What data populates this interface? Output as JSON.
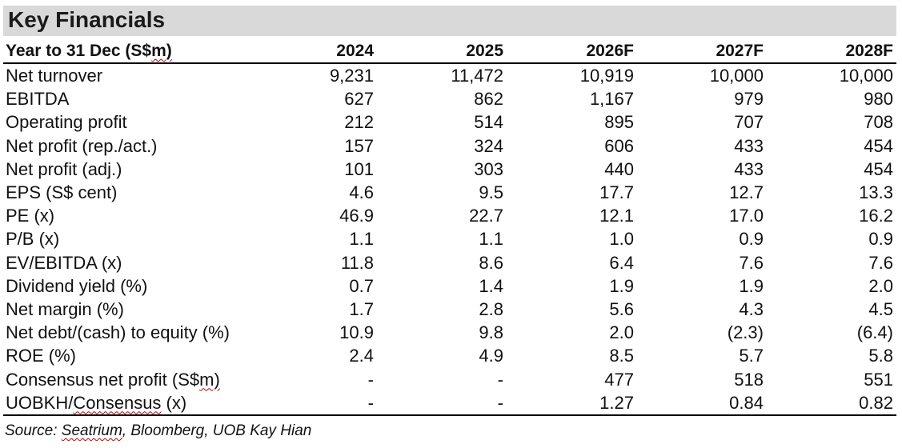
{
  "title": "Key Financials",
  "header": {
    "label_prefix": "Year to 31 Dec (S$",
    "label_wavy": "m)",
    "years": [
      "2024",
      "2025",
      "2026F",
      "2027F",
      "2028F"
    ]
  },
  "rows": [
    {
      "label": "Net turnover",
      "values": [
        "9,231",
        "11,472",
        "10,919",
        "10,000",
        "10,000"
      ]
    },
    {
      "label": "EBITDA",
      "values": [
        "627",
        "862",
        "1,167",
        "979",
        "980"
      ]
    },
    {
      "label": "Operating profit",
      "values": [
        "212",
        "514",
        "895",
        "707",
        "708"
      ]
    },
    {
      "label": "Net profit (rep./act.)",
      "values": [
        "157",
        "324",
        "606",
        "433",
        "454"
      ]
    },
    {
      "label": "Net profit (adj.)",
      "values": [
        "101",
        "303",
        "440",
        "433",
        "454"
      ]
    },
    {
      "label": "EPS (S$ cent)",
      "values": [
        "4.6",
        "9.5",
        "17.7",
        "12.7",
        "13.3"
      ]
    },
    {
      "label": "PE (x)",
      "values": [
        "46.9",
        "22.7",
        "12.1",
        "17.0",
        "16.2"
      ]
    },
    {
      "label": "P/B (x)",
      "values": [
        "1.1",
        "1.1",
        "1.0",
        "0.9",
        "0.9"
      ]
    },
    {
      "label": "EV/EBITDA (x)",
      "values": [
        "11.8",
        "8.6",
        "6.4",
        "7.6",
        "7.6"
      ]
    },
    {
      "label": "Dividend yield (%)",
      "values": [
        "0.7",
        "1.4",
        "1.9",
        "1.9",
        "2.0"
      ]
    },
    {
      "label": "Net margin (%)",
      "values": [
        "1.7",
        "2.8",
        "5.6",
        "4.3",
        "4.5"
      ]
    },
    {
      "label": "Net debt/(cash) to equity (%)",
      "values": [
        "10.9",
        "9.8",
        "2.0",
        "(2.3)",
        "(6.4)"
      ]
    },
    {
      "label": "ROE (%)",
      "values": [
        "2.4",
        "4.9",
        "8.5",
        "5.7",
        "5.8"
      ]
    },
    {
      "label": "Consensus net profit (S$m)",
      "label_prefix": "Consensus net profit (S$",
      "label_wavy": "m)",
      "values": [
        "-",
        "-",
        "477",
        "518",
        "551"
      ]
    },
    {
      "label": "UOBKH/Consensus (x)",
      "label_prefix": "UOBKH/",
      "label_wavy": "Consensus",
      "label_suffix": " (x)",
      "values": [
        "-",
        "-",
        "1.27",
        "0.84",
        "0.82"
      ]
    }
  ],
  "source": {
    "prefix": "Source: ",
    "wavy": "Seatrium",
    "suffix": ", Bloomberg, UOB Kay Hian"
  }
}
